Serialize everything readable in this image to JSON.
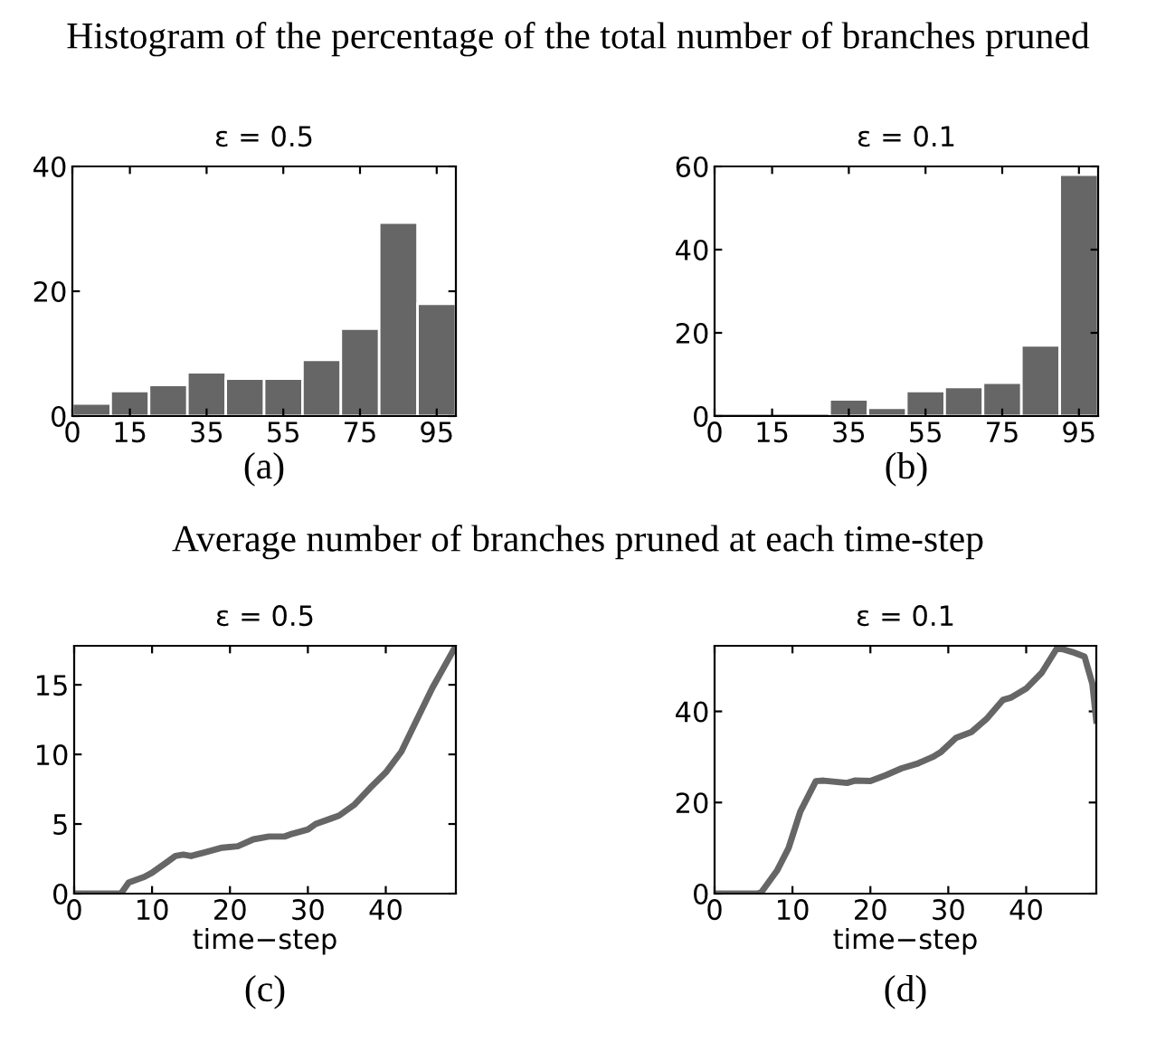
{
  "chart_data": [
    {
      "type": "histogram",
      "title": "ε = 0.5",
      "annotations": [
        "Histogram of the percentage of the total number of branches pruned",
        "(a)"
      ],
      "bins": [
        0,
        10,
        20,
        30,
        40,
        50,
        60,
        70,
        80,
        90,
        100
      ],
      "values": [
        2,
        4,
        5,
        7,
        6,
        6,
        9,
        14,
        31,
        18
      ],
      "color": "#666666",
      "xlim": [
        0,
        100
      ],
      "xticks": [
        0,
        15,
        35,
        55,
        75,
        95
      ],
      "ylim": [
        0,
        40
      ],
      "yticks": [
        0,
        20,
        40
      ],
      "grid": false,
      "legend": false
    },
    {
      "type": "histogram",
      "title": "ε = 0.1",
      "annotations": [
        "(b)"
      ],
      "bins": [
        0,
        10,
        20,
        30,
        40,
        50,
        60,
        70,
        80,
        90,
        100
      ],
      "values": [
        0,
        0,
        0,
        4,
        2,
        6,
        7,
        8,
        17,
        58
      ],
      "color": "#666666",
      "xlim": [
        0,
        100
      ],
      "xticks": [
        0,
        15,
        35,
        55,
        75,
        95
      ],
      "ylim": [
        0,
        60
      ],
      "yticks": [
        0,
        20,
        40,
        60
      ],
      "grid": false,
      "legend": false
    },
    {
      "type": "line",
      "title": "ε = 0.5",
      "xlabel": "time−step",
      "annotations": [
        "Average number of branches pruned at each time-step",
        "(c)"
      ],
      "series": [
        {
          "color": "#666666",
          "x": [
            0,
            6,
            7,
            9,
            10,
            12,
            13,
            14,
            15,
            17,
            19,
            21,
            23,
            25,
            27,
            28,
            30,
            31,
            33,
            34,
            36,
            38,
            40,
            42,
            44,
            46,
            48,
            49
          ],
          "values": [
            0,
            0,
            0.8,
            1.2,
            1.5,
            2.3,
            2.7,
            2.8,
            2.7,
            3.0,
            3.3,
            3.4,
            3.9,
            4.1,
            4.1,
            4.3,
            4.6,
            5.0,
            5.4,
            5.6,
            6.4,
            7.6,
            8.7,
            10.2,
            12.5,
            14.8,
            16.8,
            17.8
          ]
        }
      ],
      "xlim": [
        0,
        49
      ],
      "xticks": [
        0,
        10,
        20,
        30,
        40
      ],
      "ylim": [
        0,
        17.8
      ],
      "yticks": [
        0,
        5,
        10,
        15
      ],
      "grid": false,
      "legend": false,
      "marker": "none",
      "line_style": "solid"
    },
    {
      "type": "line",
      "title": "ε = 0.1",
      "xlabel": "time−step",
      "annotations": [
        "(d)"
      ],
      "series": [
        {
          "color": "#666666",
          "x": [
            0,
            5.5,
            6,
            8,
            9.5,
            11,
            13,
            14,
            17,
            18,
            20,
            22,
            24,
            26,
            28,
            29,
            31,
            33,
            35,
            37,
            38,
            40,
            42,
            44,
            46,
            47.5,
            48.5,
            49
          ],
          "values": [
            0,
            0,
            0.3,
            5,
            10,
            18,
            24.7,
            24.8,
            24.3,
            24.8,
            24.7,
            26,
            27.5,
            28.5,
            30,
            31,
            34.2,
            35.5,
            38.5,
            42.5,
            43,
            45,
            48.5,
            54,
            53,
            52,
            46,
            38
          ]
        }
      ],
      "xlim": [
        0,
        49
      ],
      "xticks": [
        0,
        10,
        20,
        30,
        40
      ],
      "ylim": [
        0,
        54.4
      ],
      "yticks": [
        0,
        20,
        40
      ],
      "grid": false,
      "legend": false,
      "marker": "none",
      "line_style": "solid"
    }
  ]
}
